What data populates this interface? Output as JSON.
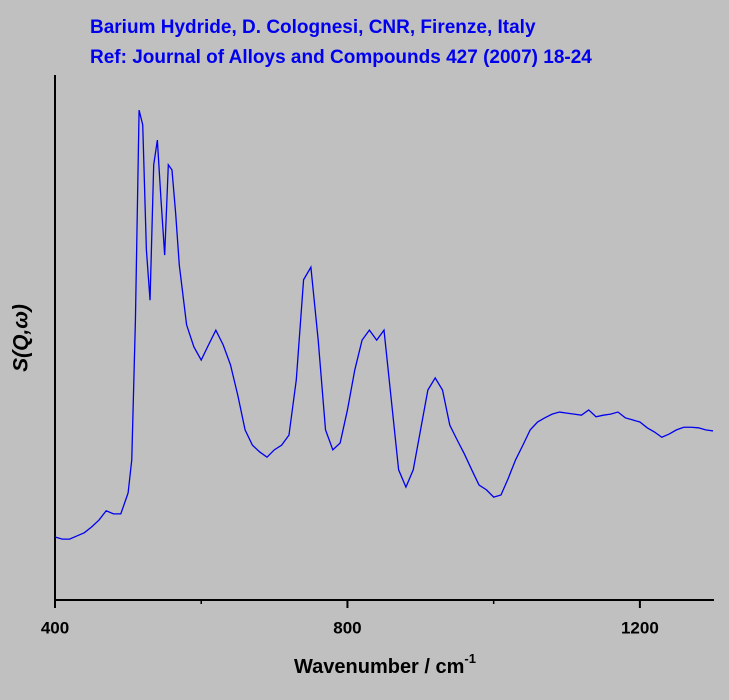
{
  "chart_data": {
    "type": "line",
    "title": "Barium Hydride, D. Colognesi, CNR, Firenze, Italy",
    "subtitle": "Ref: Journal of Alloys and Compounds 427 (2007) 18-24",
    "ylabel": "S(Q,ω)",
    "xlabel": "Wavenumber / cm",
    "xlabel_superscript": "-1",
    "xlim": [
      400,
      1300
    ],
    "ylim": [
      0,
      100
    ],
    "xticks": [
      400,
      800,
      1200
    ],
    "xminor_ticks": [
      600,
      1000
    ],
    "x": [
      400,
      410,
      420,
      430,
      440,
      450,
      460,
      470,
      480,
      490,
      500,
      505,
      510,
      515,
      520,
      525,
      530,
      535,
      540,
      545,
      550,
      555,
      560,
      565,
      570,
      575,
      580,
      590,
      600,
      610,
      620,
      630,
      640,
      650,
      660,
      670,
      680,
      690,
      700,
      710,
      720,
      730,
      740,
      750,
      760,
      770,
      780,
      790,
      800,
      810,
      820,
      830,
      840,
      850,
      860,
      870,
      880,
      890,
      900,
      910,
      920,
      930,
      940,
      950,
      960,
      970,
      980,
      990,
      1000,
      1010,
      1020,
      1030,
      1040,
      1050,
      1060,
      1070,
      1080,
      1090,
      1100,
      1110,
      1120,
      1130,
      1140,
      1150,
      1160,
      1170,
      1180,
      1190,
      1200,
      1210,
      1220,
      1230,
      1240,
      1250,
      1260,
      1270,
      1280,
      1290,
      1300
    ],
    "series": [
      {
        "color": "#0000ee",
        "values": [
          12.0,
          11.6,
          11.6,
          12.2,
          12.8,
          13.9,
          15.2,
          17.0,
          16.4,
          16.4,
          20.4,
          26.7,
          53.3,
          93.3,
          90.5,
          66.7,
          57.1,
          82.9,
          87.6,
          76.2,
          65.7,
          82.9,
          81.9,
          73.7,
          63.8,
          58.1,
          52.4,
          48.2,
          45.7,
          48.6,
          51.4,
          48.6,
          44.8,
          39.0,
          32.4,
          29.5,
          28.2,
          27.2,
          28.6,
          29.5,
          31.4,
          41.9,
          61.0,
          63.4,
          49.5,
          32.4,
          28.6,
          29.9,
          36.2,
          43.8,
          49.5,
          51.4,
          49.5,
          51.4,
          38.1,
          24.8,
          21.5,
          24.8,
          32.4,
          40.0,
          42.3,
          40.0,
          33.3,
          30.5,
          27.8,
          24.8,
          21.9,
          21.0,
          19.6,
          20.0,
          23.2,
          26.7,
          29.5,
          32.4,
          33.9,
          34.7,
          35.4,
          35.8,
          35.6,
          35.4,
          35.2,
          36.2,
          34.9,
          35.2,
          35.4,
          35.8,
          34.7,
          34.3,
          33.9,
          32.8,
          32.0,
          31.0,
          31.6,
          32.4,
          32.9,
          32.9,
          32.8,
          32.4,
          32.2
        ]
      }
    ]
  }
}
